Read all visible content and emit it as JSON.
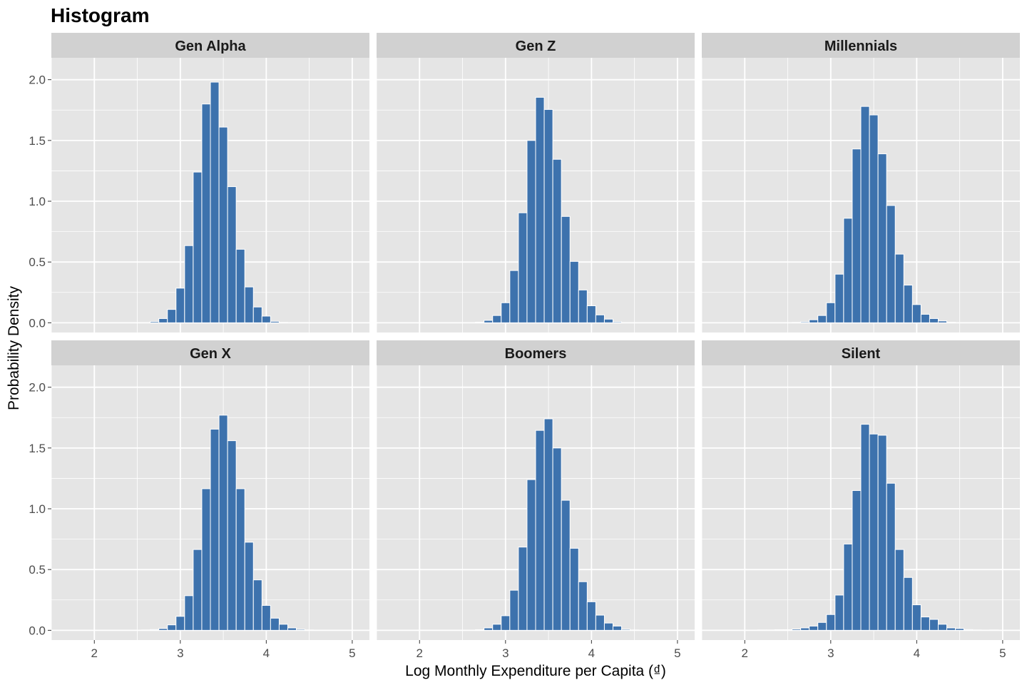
{
  "chart_data": {
    "type": "bar",
    "title": "Histogram",
    "xlabel": "Log Monthly Expenditure per Capita (₫)",
    "ylabel": "Probability Density",
    "xlim": [
      1.5,
      5.2
    ],
    "ylim": [
      -0.08,
      2.18
    ],
    "x_ticks": [
      2,
      3,
      4,
      5
    ],
    "y_ticks": [
      0.0,
      0.5,
      1.0,
      1.5,
      2.0
    ],
    "y_tick_labels": [
      "0.0",
      "0.5",
      "1.0",
      "1.5",
      "2.0"
    ],
    "grid": true,
    "bin_width": 0.1,
    "colors": {
      "bar_fill": "#3d72ad",
      "bar_stroke": "#ffffff",
      "panel_bg": "#e5e5e5",
      "strip_bg": "#d1d1d1",
      "grid": "#ffffff"
    },
    "panels": [
      {
        "name": "Gen Alpha",
        "bins": [
          {
            "x": 2.7,
            "y": 0.01
          },
          {
            "x": 2.8,
            "y": 0.035
          },
          {
            "x": 2.9,
            "y": 0.11
          },
          {
            "x": 3.0,
            "y": 0.285
          },
          {
            "x": 3.1,
            "y": 0.635
          },
          {
            "x": 3.2,
            "y": 1.24
          },
          {
            "x": 3.3,
            "y": 1.8
          },
          {
            "x": 3.4,
            "y": 1.98
          },
          {
            "x": 3.5,
            "y": 1.61
          },
          {
            "x": 3.6,
            "y": 1.12
          },
          {
            "x": 3.7,
            "y": 0.605
          },
          {
            "x": 3.8,
            "y": 0.295
          },
          {
            "x": 3.9,
            "y": 0.13
          },
          {
            "x": 4.0,
            "y": 0.055
          },
          {
            "x": 4.1,
            "y": 0.012
          },
          {
            "x": 4.2,
            "y": 0.003
          }
        ]
      },
      {
        "name": "Gen Z",
        "bins": [
          {
            "x": 2.6,
            "y": 0.002
          },
          {
            "x": 2.7,
            "y": 0.005
          },
          {
            "x": 2.8,
            "y": 0.02
          },
          {
            "x": 2.9,
            "y": 0.06
          },
          {
            "x": 3.0,
            "y": 0.165
          },
          {
            "x": 3.1,
            "y": 0.43
          },
          {
            "x": 3.2,
            "y": 0.905
          },
          {
            "x": 3.3,
            "y": 1.5
          },
          {
            "x": 3.4,
            "y": 1.855
          },
          {
            "x": 3.5,
            "y": 1.755
          },
          {
            "x": 3.6,
            "y": 1.345
          },
          {
            "x": 3.7,
            "y": 0.875
          },
          {
            "x": 3.8,
            "y": 0.505
          },
          {
            "x": 3.9,
            "y": 0.27
          },
          {
            "x": 4.0,
            "y": 0.14
          },
          {
            "x": 4.1,
            "y": 0.065
          },
          {
            "x": 4.2,
            "y": 0.03
          },
          {
            "x": 4.3,
            "y": 0.008
          }
        ]
      },
      {
        "name": "Millennials",
        "bins": [
          {
            "x": 2.6,
            "y": 0.003
          },
          {
            "x": 2.7,
            "y": 0.008
          },
          {
            "x": 2.8,
            "y": 0.025
          },
          {
            "x": 2.9,
            "y": 0.06
          },
          {
            "x": 3.0,
            "y": 0.165
          },
          {
            "x": 3.1,
            "y": 0.4
          },
          {
            "x": 3.2,
            "y": 0.86
          },
          {
            "x": 3.3,
            "y": 1.43
          },
          {
            "x": 3.4,
            "y": 1.78
          },
          {
            "x": 3.5,
            "y": 1.71
          },
          {
            "x": 3.6,
            "y": 1.39
          },
          {
            "x": 3.7,
            "y": 0.965
          },
          {
            "x": 3.8,
            "y": 0.565
          },
          {
            "x": 3.9,
            "y": 0.31
          },
          {
            "x": 4.0,
            "y": 0.15
          },
          {
            "x": 4.1,
            "y": 0.07
          },
          {
            "x": 4.2,
            "y": 0.035
          },
          {
            "x": 4.3,
            "y": 0.015
          },
          {
            "x": 4.4,
            "y": 0.004
          }
        ]
      },
      {
        "name": "Gen X",
        "bins": [
          {
            "x": 2.6,
            "y": 0.003
          },
          {
            "x": 2.7,
            "y": 0.006
          },
          {
            "x": 2.8,
            "y": 0.015
          },
          {
            "x": 2.9,
            "y": 0.045
          },
          {
            "x": 3.0,
            "y": 0.115
          },
          {
            "x": 3.1,
            "y": 0.285
          },
          {
            "x": 3.2,
            "y": 0.665
          },
          {
            "x": 3.3,
            "y": 1.165
          },
          {
            "x": 3.4,
            "y": 1.655
          },
          {
            "x": 3.5,
            "y": 1.77
          },
          {
            "x": 3.6,
            "y": 1.56
          },
          {
            "x": 3.7,
            "y": 1.165
          },
          {
            "x": 3.8,
            "y": 0.725
          },
          {
            "x": 3.9,
            "y": 0.415
          },
          {
            "x": 4.0,
            "y": 0.205
          },
          {
            "x": 4.1,
            "y": 0.1
          },
          {
            "x": 4.2,
            "y": 0.05
          },
          {
            "x": 4.3,
            "y": 0.02
          },
          {
            "x": 4.4,
            "y": 0.008
          },
          {
            "x": 4.5,
            "y": 0.003
          }
        ]
      },
      {
        "name": "Boomers",
        "bins": [
          {
            "x": 2.6,
            "y": 0.002
          },
          {
            "x": 2.7,
            "y": 0.005
          },
          {
            "x": 2.8,
            "y": 0.02
          },
          {
            "x": 2.9,
            "y": 0.05
          },
          {
            "x": 3.0,
            "y": 0.12
          },
          {
            "x": 3.1,
            "y": 0.33
          },
          {
            "x": 3.2,
            "y": 0.685
          },
          {
            "x": 3.3,
            "y": 1.24
          },
          {
            "x": 3.4,
            "y": 1.645
          },
          {
            "x": 3.5,
            "y": 1.74
          },
          {
            "x": 3.6,
            "y": 1.5
          },
          {
            "x": 3.7,
            "y": 1.07
          },
          {
            "x": 3.8,
            "y": 0.675
          },
          {
            "x": 3.9,
            "y": 0.4
          },
          {
            "x": 4.0,
            "y": 0.235
          },
          {
            "x": 4.1,
            "y": 0.125
          },
          {
            "x": 4.2,
            "y": 0.06
          },
          {
            "x": 4.3,
            "y": 0.035
          },
          {
            "x": 4.4,
            "y": 0.008
          },
          {
            "x": 4.5,
            "y": 0.003
          }
        ]
      },
      {
        "name": "Silent",
        "bins": [
          {
            "x": 2.1,
            "y": 0.002
          },
          {
            "x": 2.2,
            "y": 0.003
          },
          {
            "x": 2.3,
            "y": 0.003
          },
          {
            "x": 2.4,
            "y": 0.005
          },
          {
            "x": 2.5,
            "y": 0.005
          },
          {
            "x": 2.6,
            "y": 0.01
          },
          {
            "x": 2.7,
            "y": 0.02
          },
          {
            "x": 2.8,
            "y": 0.035
          },
          {
            "x": 2.9,
            "y": 0.065
          },
          {
            "x": 3.0,
            "y": 0.13
          },
          {
            "x": 3.1,
            "y": 0.29
          },
          {
            "x": 3.2,
            "y": 0.71
          },
          {
            "x": 3.3,
            "y": 1.15
          },
          {
            "x": 3.4,
            "y": 1.695
          },
          {
            "x": 3.5,
            "y": 1.615
          },
          {
            "x": 3.6,
            "y": 1.605
          },
          {
            "x": 3.7,
            "y": 1.21
          },
          {
            "x": 3.8,
            "y": 0.665
          },
          {
            "x": 3.9,
            "y": 0.435
          },
          {
            "x": 4.0,
            "y": 0.21
          },
          {
            "x": 4.1,
            "y": 0.11
          },
          {
            "x": 4.2,
            "y": 0.09
          },
          {
            "x": 4.3,
            "y": 0.05
          },
          {
            "x": 4.4,
            "y": 0.02
          },
          {
            "x": 4.5,
            "y": 0.015
          },
          {
            "x": 4.6,
            "y": 0.006
          },
          {
            "x": 4.7,
            "y": 0.003
          },
          {
            "x": 4.8,
            "y": 0.002
          },
          {
            "x": 4.9,
            "y": 0.003
          },
          {
            "x": 5.0,
            "y": 0.002
          }
        ]
      }
    ]
  }
}
